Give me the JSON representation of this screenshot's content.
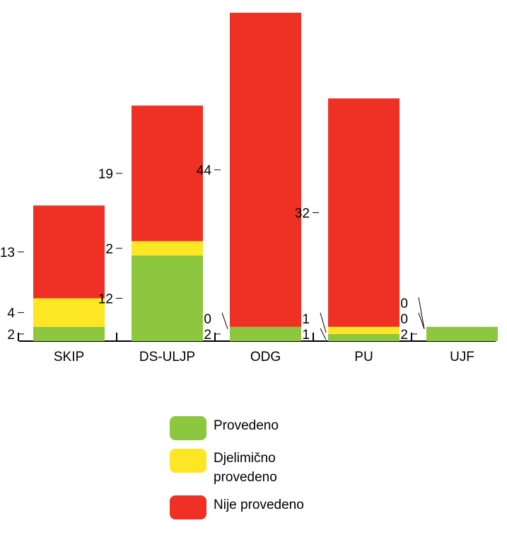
{
  "chart_data": {
    "type": "bar",
    "stacked": true,
    "categories": [
      "SKIP",
      "DS-ULJP",
      "ODG",
      "PU",
      "UJF"
    ],
    "series": [
      {
        "name": "Provedeno",
        "color": "#8dc63f",
        "values": [
          2,
          12,
          2,
          1,
          2
        ]
      },
      {
        "name": "Djelimično provedeno",
        "color": "#fde725",
        "values": [
          4,
          2,
          0,
          1,
          0
        ]
      },
      {
        "name": "Nije provedeno",
        "color": "#ee3124",
        "values": [
          13,
          19,
          44,
          32,
          0
        ]
      }
    ],
    "ylim": [
      0,
      46
    ],
    "grid": false,
    "legend_position": "bottom"
  }
}
